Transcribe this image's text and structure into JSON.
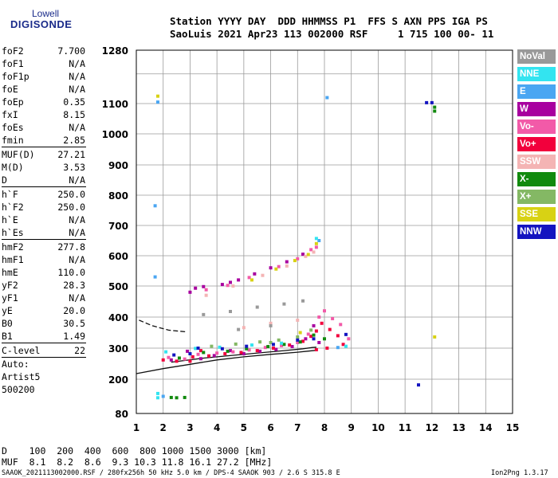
{
  "logo": {
    "line1": "Lowell",
    "line2": "DIGISONDE"
  },
  "header": {
    "line1": "Station YYYY DAY  DDD HHMMSS P1  FFS S AXN PPS IGA PS",
    "line2": "SaoLuis 2021 Apr23 113 002000 RSF     1 715 100 00- 11"
  },
  "params": [
    [
      {
        "name": "foF2",
        "value": "7.700"
      },
      {
        "name": "foF1",
        "value": "N/A"
      },
      {
        "name": "foF1p",
        "value": "N/A"
      },
      {
        "name": "foE",
        "value": "N/A"
      },
      {
        "name": "foEp",
        "value": "0.35"
      },
      {
        "name": "fxI",
        "value": "8.15"
      },
      {
        "name": "foEs",
        "value": "N/A"
      },
      {
        "name": "fmin",
        "value": "2.85"
      }
    ],
    [
      {
        "name": "MUF(D)",
        "value": "27.21"
      },
      {
        "name": "M(D)",
        "value": "3.53"
      },
      {
        "name": "D",
        "value": "N/A"
      }
    ],
    [
      {
        "name": "h`F",
        "value": "250.0"
      },
      {
        "name": "h`F2",
        "value": "250.0"
      },
      {
        "name": "h`E",
        "value": "N/A"
      },
      {
        "name": "h`Es",
        "value": "N/A"
      }
    ],
    [
      {
        "name": "hmF2",
        "value": "277.8"
      },
      {
        "name": "hmF1",
        "value": "N/A"
      },
      {
        "name": "hmE",
        "value": "110.0"
      },
      {
        "name": "yF2",
        "value": "28.3"
      },
      {
        "name": "yF1",
        "value": "N/A"
      },
      {
        "name": "yE",
        "value": "20.0"
      },
      {
        "name": "B0",
        "value": "30.5"
      },
      {
        "name": "B1",
        "value": "1.49"
      }
    ],
    [
      {
        "name": "C-level",
        "value": "22"
      }
    ]
  ],
  "autoscale": {
    "line1": "Auto:",
    "line2": "Artist5",
    "line3": "500200"
  },
  "legend": [
    {
      "label": "NoVal",
      "color": "#999999"
    },
    {
      "label": "NNE",
      "color": "#33e4f0"
    },
    {
      "label": "E",
      "color": "#4aa6f2"
    },
    {
      "label": "W",
      "color": "#a8009f"
    },
    {
      "label": "Vo-",
      "color": "#f25aa8"
    },
    {
      "label": "Vo+",
      "color": "#f2003c"
    },
    {
      "label": "SSW",
      "color": "#f4b4b4"
    },
    {
      "label": "X-",
      "color": "#118a0e"
    },
    {
      "label": "X+",
      "color": "#84b864"
    },
    {
      "label": "SSE",
      "color": "#d8d214"
    },
    {
      "label": "NNW",
      "color": "#1414c0"
    }
  ],
  "dist_table": {
    "line1": "D    100  200  400  600  800 1000 1500 3000 [km]",
    "line2": "MUF  8.1  8.2  8.6  9.3 10.3 11.8 16.1 27.2 [MHz]"
  },
  "footer": "SAAOK_2021113002000.RSF / 280fx256h 50 kHz 5.0 km / DPS-4 SAAOK 903 / 2.6 S 315.8 E",
  "version": "Ion2Png 1.3.17",
  "chart_data": {
    "type": "scatter",
    "title": "",
    "xlabel": "",
    "ylabel": "",
    "xlim": [
      1,
      15
    ],
    "ylim": [
      80,
      1280
    ],
    "x_ticks": [
      1,
      2,
      3,
      4,
      5,
      6,
      7,
      8,
      9,
      10,
      11,
      12,
      13,
      14,
      15
    ],
    "y_ticks": [
      80,
      200,
      300,
      400,
      500,
      600,
      700,
      800,
      900,
      1000,
      1100,
      1280
    ],
    "grid": true,
    "series": [
      {
        "name": "W",
        "color": "#a8009f",
        "points": [
          [
            2.3,
            262
          ],
          [
            2.9,
            290
          ],
          [
            3.4,
            266
          ],
          [
            3.9,
            276
          ],
          [
            4.5,
            292
          ],
          [
            5.0,
            282
          ],
          [
            5.6,
            290
          ],
          [
            6.2,
            296
          ],
          [
            6.8,
            305
          ],
          [
            7.3,
            330
          ],
          [
            7.6,
            372
          ],
          [
            7.8,
            318
          ],
          [
            3.0,
            480
          ],
          [
            3.5,
            498
          ],
          [
            4.2,
            505
          ],
          [
            4.8,
            520
          ],
          [
            5.4,
            540
          ],
          [
            6.0,
            560
          ],
          [
            6.6,
            580
          ],
          [
            7.2,
            605
          ],
          [
            3.2,
            493
          ],
          [
            4.5,
            512
          ]
        ]
      },
      {
        "name": "Vo+",
        "color": "#f2003c",
        "points": [
          [
            2.0,
            262
          ],
          [
            2.5,
            258
          ],
          [
            3.1,
            272
          ],
          [
            3.7,
            275
          ],
          [
            4.3,
            282
          ],
          [
            4.9,
            286
          ],
          [
            5.5,
            292
          ],
          [
            6.1,
            300
          ],
          [
            6.7,
            310
          ],
          [
            7.2,
            322
          ],
          [
            7.5,
            338
          ],
          [
            7.7,
            355
          ],
          [
            7.9,
            380
          ],
          [
            8.2,
            360
          ],
          [
            8.5,
            340
          ],
          [
            8.7,
            312
          ],
          [
            8.1,
            300
          ],
          [
            7.7,
            295
          ],
          [
            3.0,
            258
          ],
          [
            3.4,
            292
          ]
        ]
      },
      {
        "name": "Vo-",
        "color": "#f25aa8",
        "points": [
          [
            2.2,
            270
          ],
          [
            2.8,
            265
          ],
          [
            3.3,
            280
          ],
          [
            4.0,
            284
          ],
          [
            4.6,
            288
          ],
          [
            5.2,
            294
          ],
          [
            5.8,
            302
          ],
          [
            6.4,
            308
          ],
          [
            7.0,
            318
          ],
          [
            7.4,
            345
          ],
          [
            7.8,
            400
          ],
          [
            8.0,
            420
          ],
          [
            8.3,
            395
          ],
          [
            8.6,
            376
          ],
          [
            8.9,
            330
          ],
          [
            3.6,
            488
          ],
          [
            4.4,
            502
          ],
          [
            5.2,
            528
          ],
          [
            6.3,
            564
          ],
          [
            7.0,
            590
          ],
          [
            7.5,
            620
          ],
          [
            7.7,
            628
          ]
        ]
      },
      {
        "name": "X-",
        "color": "#118a0e",
        "points": [
          [
            2.6,
            268
          ],
          [
            3.5,
            286
          ],
          [
            4.4,
            290
          ],
          [
            5.1,
            298
          ],
          [
            5.9,
            305
          ],
          [
            6.5,
            312
          ],
          [
            7.1,
            320
          ],
          [
            7.6,
            342
          ],
          [
            8.0,
            330
          ],
          [
            2.3,
            136
          ],
          [
            2.5,
            135
          ],
          [
            2.8,
            136
          ],
          [
            12.1,
            1088
          ],
          [
            12.1,
            1075
          ]
        ]
      },
      {
        "name": "X+",
        "color": "#84b864",
        "points": [
          [
            3.8,
            306
          ],
          [
            4.7,
            313
          ],
          [
            5.6,
            320
          ],
          [
            6.3,
            326
          ],
          [
            7.0,
            336
          ],
          [
            7.5,
            358
          ],
          [
            6.0,
            318
          ]
        ]
      },
      {
        "name": "SSW",
        "color": "#f4b4b4",
        "points": [
          [
            3.6,
            470
          ],
          [
            4.6,
            500
          ],
          [
            5.7,
            535
          ],
          [
            6.6,
            566
          ],
          [
            7.3,
            598
          ],
          [
            7.6,
            612
          ],
          [
            5.0,
            366
          ],
          [
            6.0,
            380
          ],
          [
            7.0,
            390
          ]
        ]
      },
      {
        "name": "SSE",
        "color": "#d8d214",
        "points": [
          [
            5.3,
            520
          ],
          [
            6.2,
            556
          ],
          [
            6.9,
            584
          ],
          [
            7.4,
            604
          ],
          [
            7.7,
            640
          ],
          [
            7.1,
            350
          ],
          [
            1.8,
            1125
          ],
          [
            12.1,
            336
          ]
        ]
      },
      {
        "name": "E",
        "color": "#4aa6f2",
        "points": [
          [
            1.8,
            1105
          ],
          [
            1.7,
            765
          ],
          [
            1.7,
            530
          ],
          [
            8.1,
            1120
          ],
          [
            2.0,
            140
          ],
          [
            8.5,
            302
          ],
          [
            7.8,
            650
          ]
        ]
      },
      {
        "name": "NNE",
        "color": "#33e4f0",
        "points": [
          [
            2.1,
            288
          ],
          [
            3.2,
            299
          ],
          [
            4.1,
            303
          ],
          [
            5.3,
            310
          ],
          [
            6.4,
            316
          ],
          [
            8.8,
            306
          ],
          [
            1.8,
            150
          ],
          [
            1.8,
            135
          ],
          [
            7.7,
            657
          ]
        ]
      },
      {
        "name": "NNW",
        "color": "#1414c0",
        "points": [
          [
            2.4,
            278
          ],
          [
            3.3,
            300
          ],
          [
            4.2,
            298
          ],
          [
            5.1,
            306
          ],
          [
            6.1,
            312
          ],
          [
            7.0,
            326
          ],
          [
            7.6,
            330
          ],
          [
            8.8,
            344
          ],
          [
            11.5,
            180
          ],
          [
            11.8,
            1103
          ],
          [
            12.0,
            1103
          ],
          [
            3.0,
            282
          ]
        ]
      },
      {
        "name": "NoVal",
        "color": "#999999",
        "points": [
          [
            3.5,
            408
          ],
          [
            4.5,
            418
          ],
          [
            5.5,
            432
          ],
          [
            6.5,
            442
          ],
          [
            7.2,
            452
          ],
          [
            6.0,
            372
          ],
          [
            4.8,
            360
          ]
        ]
      }
    ],
    "trace_lines": [
      {
        "style": "solid",
        "points": [
          [
            1,
            218
          ],
          [
            2,
            234
          ],
          [
            3,
            248
          ],
          [
            4,
            262
          ],
          [
            5,
            272
          ],
          [
            6,
            280
          ],
          [
            7,
            287
          ],
          [
            7.7,
            293
          ]
        ]
      },
      {
        "style": "solid",
        "points": [
          [
            2.3,
            255
          ],
          [
            3.5,
            268
          ],
          [
            4.6,
            277
          ],
          [
            5.6,
            285
          ],
          [
            6.5,
            292
          ],
          [
            7.2,
            298
          ],
          [
            7.55,
            302
          ],
          [
            7.7,
            303
          ]
        ]
      },
      {
        "style": "dashed",
        "points": [
          [
            1.1,
            390
          ],
          [
            1.6,
            372
          ],
          [
            2.2,
            358
          ],
          [
            2.9,
            352
          ]
        ]
      }
    ]
  }
}
